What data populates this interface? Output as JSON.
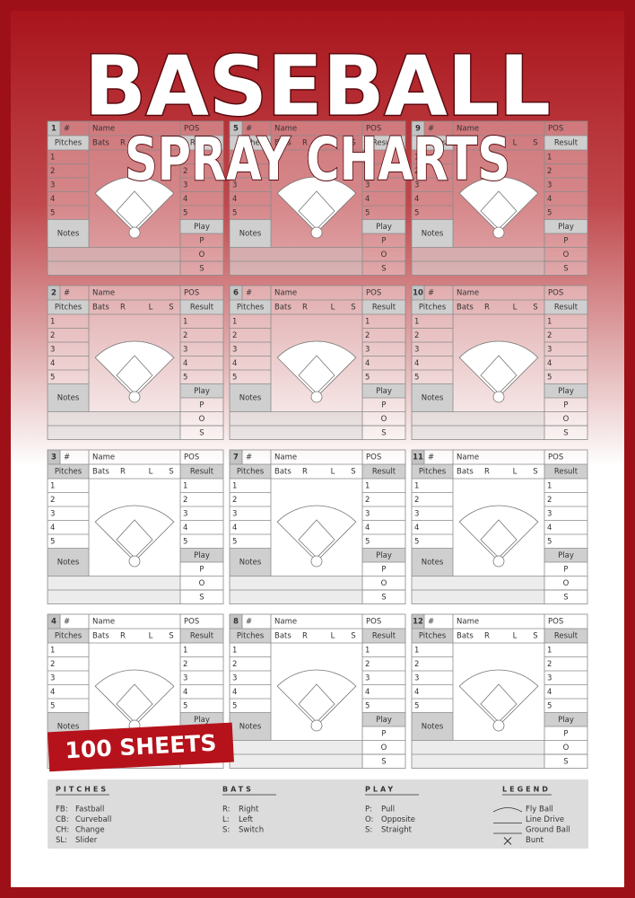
{
  "title": "BASEBALL",
  "subtitle": "SPRAY CHARTS",
  "badge": "100 SHEETS",
  "card": {
    "hash": "#",
    "name": "Name",
    "pos": "POS",
    "pitches": "Pitches",
    "bats": "Bats",
    "r": "R",
    "l": "L",
    "s": "S",
    "result": "Result",
    "rows": [
      "1",
      "2",
      "3",
      "4",
      "5"
    ],
    "notes": "Notes",
    "play": "Play",
    "play_rows": [
      "P",
      "O",
      "S"
    ]
  },
  "cards": [
    1,
    2,
    3,
    4,
    5,
    6,
    7,
    8,
    9,
    10,
    11,
    12
  ],
  "legend": {
    "pitches": {
      "title": "PITCHES",
      "items": [
        {
          "code": "FB:",
          "label": "Fastball"
        },
        {
          "code": "CB:",
          "label": "Curveball"
        },
        {
          "code": "CH:",
          "label": "Change"
        },
        {
          "code": "SL:",
          "label": "Slider"
        }
      ]
    },
    "bats": {
      "title": "BATS",
      "items": [
        {
          "code": "R:",
          "label": "Right"
        },
        {
          "code": "L:",
          "label": "Left"
        },
        {
          "code": "S:",
          "label": "Switch"
        }
      ]
    },
    "play": {
      "title": "PLAY",
      "items": [
        {
          "code": "P:",
          "label": "Pull"
        },
        {
          "code": "O:",
          "label": "Opposite"
        },
        {
          "code": "S:",
          "label": "Straight"
        }
      ]
    },
    "key": {
      "title": "LEGEND",
      "items": [
        "Fly Ball",
        "Line Drive",
        "Ground Ball",
        "Bunt"
      ]
    }
  }
}
